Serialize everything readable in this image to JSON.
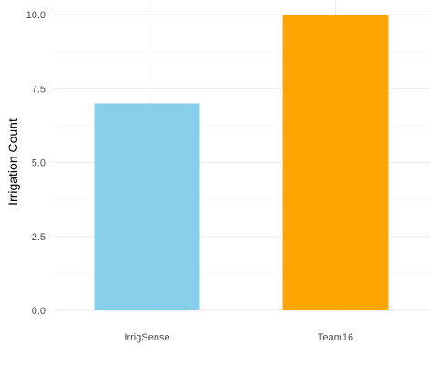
{
  "chart_data": {
    "type": "bar",
    "categories": [
      "IrrigSense",
      "Team16"
    ],
    "values": [
      7,
      10
    ],
    "bar_colors": [
      "#87ceeb",
      "#ffa500"
    ],
    "xlabel": "",
    "ylabel": "Irrigation Count",
    "ylim": [
      0,
      10
    ],
    "yticks": [
      "0.0",
      "2.5",
      "5.0",
      "7.5",
      "10.0"
    ],
    "grid": true,
    "legend": "none"
  }
}
